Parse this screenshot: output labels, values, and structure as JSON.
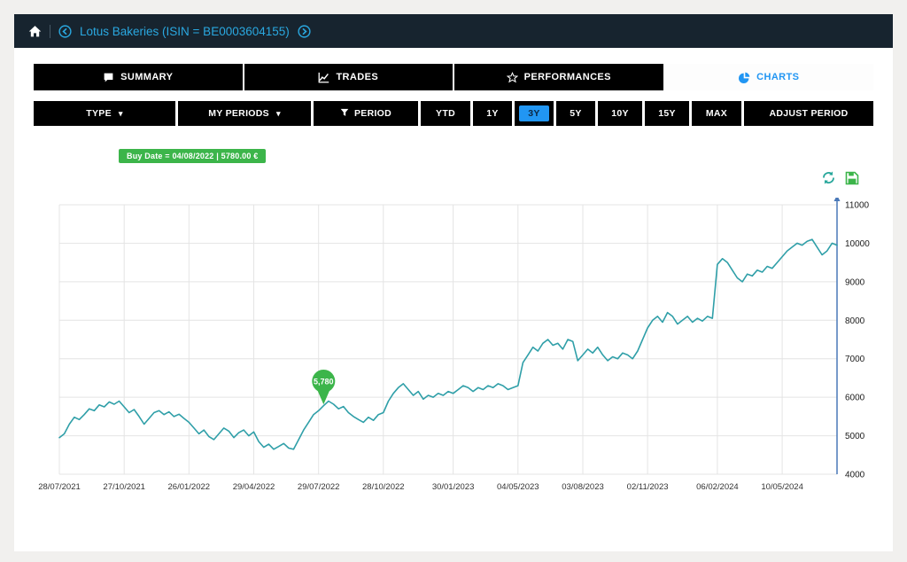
{
  "header": {
    "title": "Lotus Bakeries (ISIN = BE0003604155)"
  },
  "tabs": [
    {
      "label": "SUMMARY"
    },
    {
      "label": "TRADES"
    },
    {
      "label": "PERFORMANCES"
    },
    {
      "label": "CHARTS",
      "active": true
    }
  ],
  "toolbar": {
    "type": "TYPE",
    "my_periods": "MY PERIODS",
    "period": "PERIOD",
    "periods": [
      "YTD",
      "1Y",
      "3Y",
      "5Y",
      "10Y",
      "15Y",
      "MAX"
    ],
    "selected_period": "3Y",
    "adjust": "ADJUST PERIOD"
  },
  "buy_badge": "Buy Date = 04/08/2022 | 5780.00 €",
  "colors": {
    "navy": "#17242f",
    "cyan": "#2aa8e0",
    "blue": "#2196f3",
    "green": "#3cb54a",
    "line": "#2f9fa8"
  },
  "chart_data": {
    "type": "line",
    "title": "",
    "xlabel": "",
    "ylabel": "",
    "ylim": [
      4000,
      11000
    ],
    "y_tick_step": 1000,
    "grid": true,
    "legend": "none",
    "x_ticks": [
      {
        "i": 0,
        "label": "28/07/2021"
      },
      {
        "i": 13,
        "label": "27/10/2021"
      },
      {
        "i": 26,
        "label": "26/01/2022"
      },
      {
        "i": 39,
        "label": "29/04/2022"
      },
      {
        "i": 52,
        "label": "29/07/2022"
      },
      {
        "i": 65,
        "label": "28/10/2022"
      },
      {
        "i": 79,
        "label": "30/01/2023"
      },
      {
        "i": 92,
        "label": "04/05/2023"
      },
      {
        "i": 105,
        "label": "03/08/2023"
      },
      {
        "i": 118,
        "label": "02/11/2023"
      },
      {
        "i": 132,
        "label": "06/02/2024"
      },
      {
        "i": 145,
        "label": "10/05/2024"
      }
    ],
    "values": [
      4950,
      5050,
      5300,
      5480,
      5420,
      5550,
      5700,
      5650,
      5800,
      5750,
      5880,
      5820,
      5900,
      5750,
      5600,
      5680,
      5500,
      5300,
      5450,
      5600,
      5650,
      5550,
      5620,
      5500,
      5560,
      5450,
      5350,
      5200,
      5050,
      5150,
      4980,
      4900,
      5050,
      5200,
      5120,
      4950,
      5080,
      5150,
      5000,
      5100,
      4850,
      4700,
      4780,
      4650,
      4720,
      4800,
      4680,
      4650,
      4900,
      5150,
      5350,
      5550,
      5650,
      5780,
      5900,
      5820,
      5700,
      5760,
      5600,
      5500,
      5420,
      5350,
      5480,
      5400,
      5550,
      5600,
      5900,
      6100,
      6250,
      6350,
      6200,
      6050,
      6150,
      5950,
      6050,
      6000,
      6100,
      6050,
      6150,
      6100,
      6200,
      6300,
      6250,
      6150,
      6250,
      6200,
      6300,
      6250,
      6350,
      6300,
      6200,
      6250,
      6300,
      6900,
      7100,
      7300,
      7200,
      7400,
      7500,
      7350,
      7400,
      7250,
      7500,
      7450,
      6950,
      7100,
      7250,
      7150,
      7300,
      7100,
      6950,
      7050,
      7000,
      7150,
      7100,
      7000,
      7200,
      7500,
      7800,
      8000,
      8100,
      7950,
      8200,
      8100,
      7900,
      8000,
      8100,
      7950,
      8050,
      7980,
      8100,
      8050,
      9450,
      9600,
      9500,
      9300,
      9100,
      9000,
      9200,
      9150,
      9300,
      9250,
      9400,
      9350,
      9500,
      9650,
      9800,
      9900,
      10000,
      9950,
      10050,
      10100,
      9900,
      9700,
      9800,
      10000,
      9950
    ],
    "marker": {
      "i": 53,
      "value": 5780,
      "label": "5,780"
    }
  }
}
